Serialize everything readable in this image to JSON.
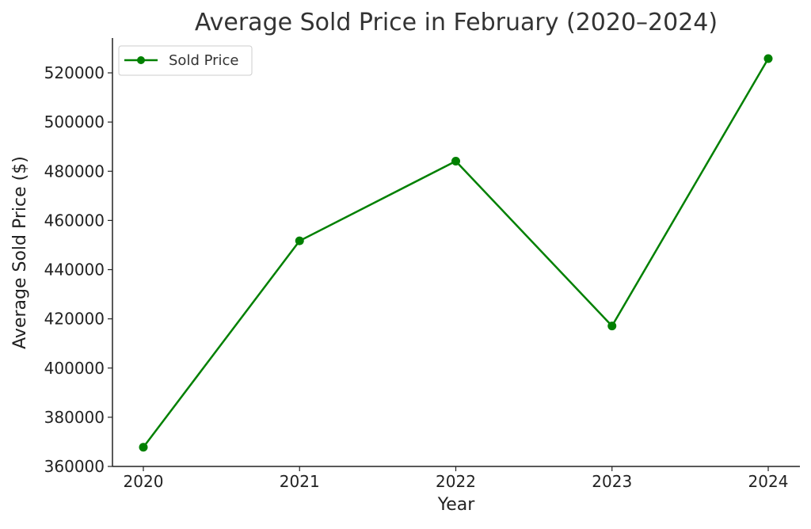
{
  "chart_data": {
    "type": "line",
    "title": "Average Sold Price in February (2020–2024)",
    "xlabel": "Year",
    "ylabel": "Average Sold Price ($)",
    "categories": [
      "2020",
      "2021",
      "2022",
      "2023",
      "2024"
    ],
    "y_ticks": [
      "360000",
      "380000",
      "400000",
      "420000",
      "440000",
      "460000",
      "480000",
      "500000",
      "520000"
    ],
    "ylim": [
      360000,
      525000
    ],
    "series": [
      {
        "name": "Sold Price",
        "color": "#008000",
        "marker": "circle",
        "values": [
          367800,
          451700,
          484100,
          417100,
          525800
        ]
      }
    ],
    "legend": {
      "placement": "top-left",
      "entries": [
        "Sold Price"
      ]
    },
    "grid": false
  }
}
